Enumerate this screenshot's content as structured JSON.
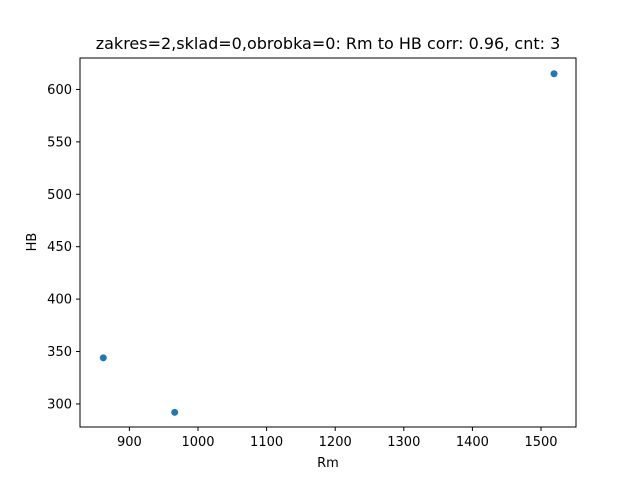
{
  "chart_data": {
    "type": "scatter",
    "title": "zakres=2,sklad=0,obrobka=0: Rm to HB corr: 0.96, cnt: 3",
    "xlabel": "Rm",
    "ylabel": "HB",
    "xlim": [
      828,
      1551
    ],
    "ylim": [
      278,
      630
    ],
    "xticks": [
      900,
      1000,
      1100,
      1200,
      1300,
      1400,
      1500
    ],
    "yticks": [
      300,
      350,
      400,
      450,
      500,
      550,
      600
    ],
    "points": [
      {
        "x": 862,
        "y": 344
      },
      {
        "x": 966,
        "y": 292
      },
      {
        "x": 1519,
        "y": 615
      }
    ],
    "marker_color": "#1f77b4",
    "grid": false,
    "legend": "none"
  }
}
